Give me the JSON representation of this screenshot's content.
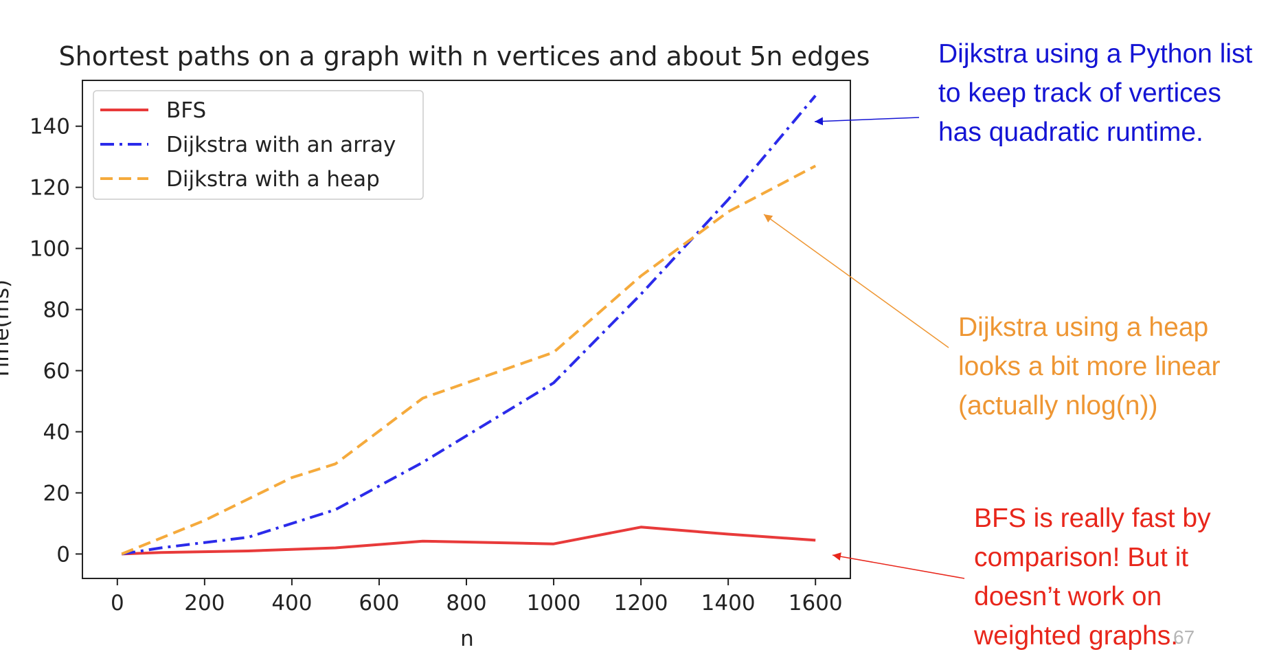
{
  "chart_data": {
    "type": "line",
    "title": "Shortest paths on a graph with n vertices and about 5n edges",
    "xlabel": "n",
    "ylabel": "Time(ms)",
    "xlim": [
      -80,
      1680
    ],
    "ylim": [
      -8,
      155
    ],
    "xticks": [
      0,
      200,
      400,
      600,
      800,
      1000,
      1200,
      1400,
      1600
    ],
    "yticks": [
      0,
      20,
      40,
      60,
      80,
      100,
      120,
      140
    ],
    "legend_position": "upper-left",
    "grid": false,
    "series": [
      {
        "name": "BFS",
        "color": "#e83a3a",
        "line_style": "solid",
        "x": [
          10,
          100,
          300,
          500,
          700,
          1000,
          1200,
          1400,
          1600
        ],
        "y": [
          0,
          0.5,
          1,
          2,
          4.2,
          3.3,
          8.8,
          6.5,
          4.5
        ]
      },
      {
        "name": "Dijkstra with an array",
        "color": "#2b2bea",
        "line_style": "dashdot",
        "x": [
          10,
          100,
          300,
          500,
          700,
          1000,
          1200,
          1400,
          1600
        ],
        "y": [
          0,
          2,
          5.5,
          14.5,
          30,
          56,
          85,
          116,
          150
        ]
      },
      {
        "name": "Dijkstra with a heap",
        "color": "#f5aa3c",
        "line_style": "dashed",
        "x": [
          10,
          200,
          400,
          500,
          700,
          1000,
          1200,
          1400,
          1600
        ],
        "y": [
          0,
          11,
          25,
          29.5,
          51,
          66,
          91,
          112,
          127
        ]
      }
    ]
  },
  "annotations": {
    "blue_note": "Dijkstra using a Python list to keep track of vertices has quadratic runtime.",
    "orange_note": "Dijkstra using a heap looks a bit more linear (actually nlog(n))",
    "red_note": "BFS is really fast by comparison!  But it doesn’t work on weighted graphs.",
    "colors": {
      "blue": "#1414d4",
      "orange": "#ee9633",
      "red": "#e8261b"
    }
  },
  "slide_number": "67"
}
